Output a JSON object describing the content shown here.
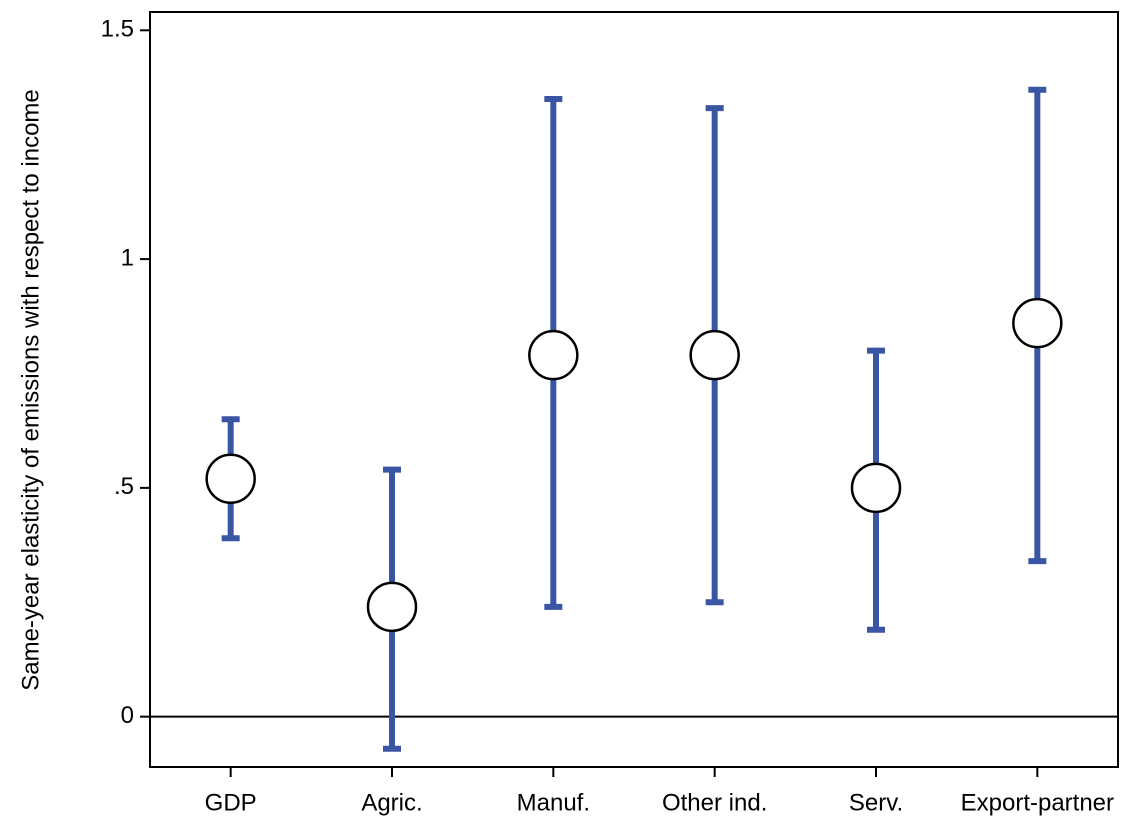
{
  "chart_data": {
    "type": "errorbar",
    "y_label": "Same-year elasticity of emissions with respect to income",
    "categories": [
      "GDP",
      "Agric.",
      "Manuf.",
      "Other ind.",
      "Serv.",
      "Export-partner"
    ],
    "values": [
      0.52,
      0.24,
      0.79,
      0.79,
      0.5,
      0.86
    ],
    "lower": [
      0.39,
      -0.07,
      0.24,
      0.25,
      0.19,
      0.34
    ],
    "upper": [
      0.65,
      0.54,
      1.35,
      1.33,
      0.8,
      1.37
    ],
    "color": "#3a55a4",
    "reference_line": 0,
    "ylim": [
      -0.11,
      1.54
    ],
    "yticks": [
      0,
      {
        "value": 0.5,
        "label": ".5"
      },
      1,
      1.5
    ]
  }
}
